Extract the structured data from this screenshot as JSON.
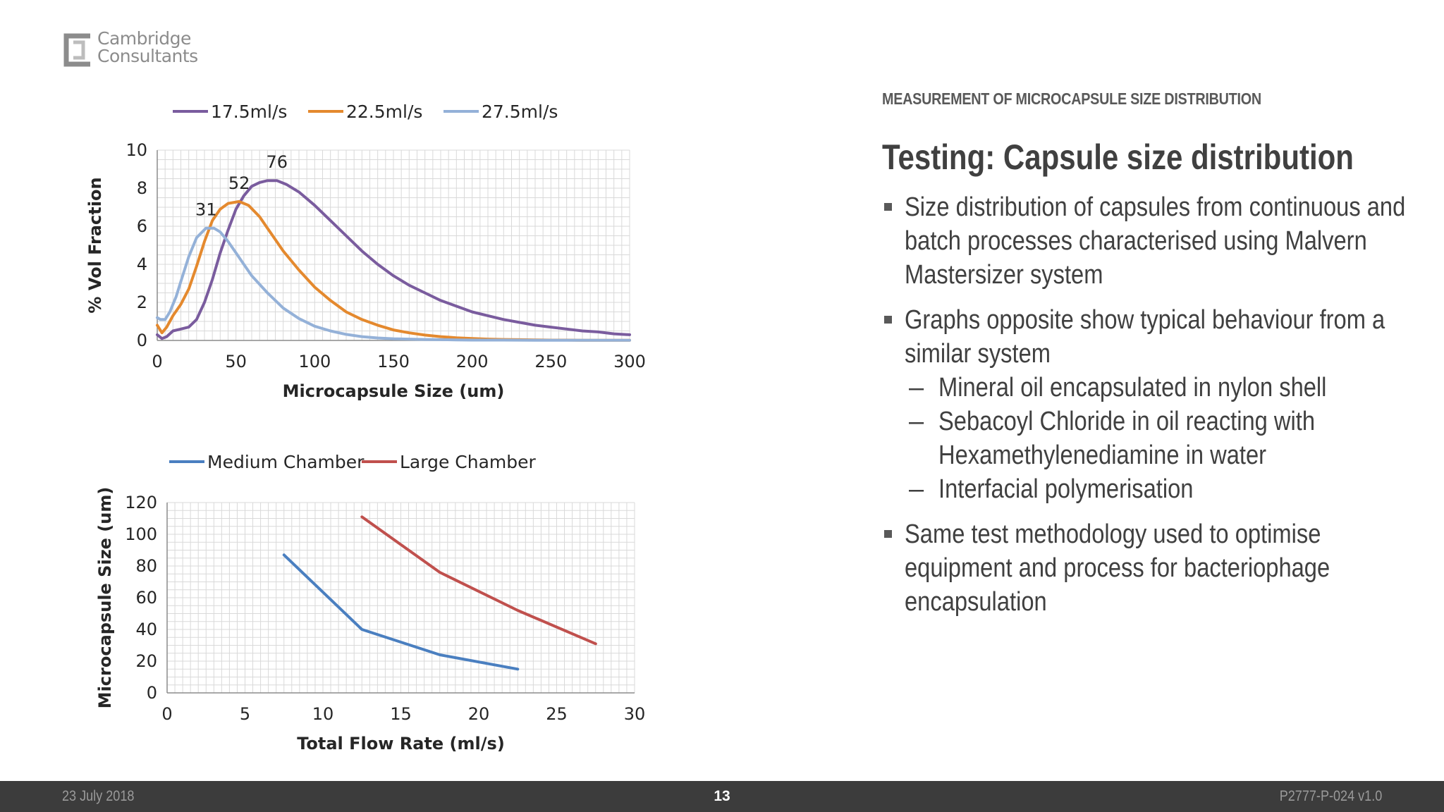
{
  "logo": {
    "line1": "Cambridge",
    "line2": "Consultants"
  },
  "section_label": "MEASUREMENT OF MICROCAPSULE SIZE DISTRIBUTION",
  "title": "Testing: Capsule size distribution",
  "bullets": [
    {
      "text": "Size distribution of capsules from continuous and batch processes characterised using Malvern Mastersizer system",
      "subs": []
    },
    {
      "text": "Graphs opposite show typical behaviour from a similar system",
      "subs": [
        "Mineral oil encapsulated in nylon shell",
        "Sebacoyl Chloride in oil reacting with Hexamethylenediamine in water",
        "Interfacial polymerisation"
      ]
    },
    {
      "text": "Same test methodology used to optimise equipment and process for bacteriophage encapsulation",
      "subs": []
    }
  ],
  "footer": {
    "date": "23 July 2018",
    "page": "13",
    "doc_id": "P2777-P-024 v1.0"
  },
  "colors": {
    "purple": "#7a5c9e",
    "orange": "#e4892e",
    "light_blue": "#94b1d8",
    "blue": "#4a7fc0",
    "red": "#c0504d"
  },
  "chart_data": [
    {
      "type": "line",
      "xlabel": "Microcapsule Size (um)",
      "ylabel": "% Vol Fraction",
      "xlim": [
        0,
        300
      ],
      "ylim": [
        0,
        10
      ],
      "xticks": [
        "0",
        "50",
        "100",
        "150",
        "200",
        "250",
        "300"
      ],
      "yticks": [
        "0",
        "2",
        "4",
        "6",
        "8",
        "10"
      ],
      "grid": true,
      "legend": "top",
      "series": [
        {
          "name": "17.5ml/s",
          "color": "#7a5c9e",
          "x": [
            0,
            3,
            6,
            10,
            15,
            20,
            25,
            30,
            35,
            40,
            45,
            50,
            55,
            60,
            65,
            70,
            76,
            82,
            90,
            100,
            110,
            120,
            130,
            140,
            150,
            160,
            170,
            180,
            190,
            200,
            210,
            220,
            230,
            240,
            250,
            260,
            270,
            280,
            290,
            300
          ],
          "y": [
            0.3,
            0.1,
            0.2,
            0.5,
            0.6,
            0.7,
            1.1,
            2.0,
            3.2,
            4.6,
            5.8,
            6.9,
            7.6,
            8.1,
            8.3,
            8.4,
            8.4,
            8.2,
            7.8,
            7.1,
            6.3,
            5.5,
            4.7,
            4.0,
            3.4,
            2.9,
            2.5,
            2.1,
            1.8,
            1.5,
            1.3,
            1.1,
            0.95,
            0.8,
            0.7,
            0.6,
            0.5,
            0.45,
            0.35,
            0.3
          ]
        },
        {
          "name": "22.5ml/s",
          "color": "#e4892e",
          "x": [
            0,
            3,
            6,
            10,
            15,
            20,
            25,
            30,
            35,
            40,
            45,
            52,
            58,
            65,
            70,
            75,
            80,
            90,
            100,
            110,
            120,
            130,
            140,
            150,
            160,
            170,
            180,
            190,
            200,
            210,
            220,
            230,
            240,
            250,
            260,
            270,
            280,
            290,
            300
          ],
          "y": [
            0.8,
            0.4,
            0.7,
            1.3,
            1.9,
            2.7,
            3.9,
            5.2,
            6.3,
            6.9,
            7.2,
            7.3,
            7.1,
            6.5,
            5.9,
            5.3,
            4.7,
            3.7,
            2.8,
            2.1,
            1.5,
            1.1,
            0.8,
            0.55,
            0.4,
            0.28,
            0.2,
            0.14,
            0.1,
            0.07,
            0.05,
            0.04,
            0.03,
            0.02,
            0.02,
            0.01,
            0.01,
            0.01,
            0.01
          ]
        },
        {
          "name": "27.5ml/s",
          "color": "#94b1d8",
          "x": [
            0,
            2,
            5,
            8,
            12,
            15,
            20,
            25,
            31,
            36,
            40,
            45,
            50,
            55,
            60,
            70,
            80,
            90,
            100,
            110,
            120,
            130,
            140,
            150,
            160,
            170,
            180,
            190,
            200,
            220,
            240,
            260,
            280,
            300
          ],
          "y": [
            1.2,
            1.1,
            1.1,
            1.5,
            2.3,
            3.1,
            4.4,
            5.4,
            5.9,
            5.9,
            5.7,
            5.2,
            4.6,
            4.0,
            3.4,
            2.5,
            1.7,
            1.15,
            0.75,
            0.5,
            0.32,
            0.2,
            0.13,
            0.09,
            0.07,
            0.05,
            0.04,
            0.03,
            0.02,
            0.02,
            0.01,
            0.01,
            0.01,
            0.01
          ]
        }
      ],
      "annotations": [
        {
          "text": "31",
          "x": 31,
          "y": 5.9
        },
        {
          "text": "52",
          "x": 52,
          "y": 7.3
        },
        {
          "text": "76",
          "x": 76,
          "y": 8.4
        }
      ]
    },
    {
      "type": "line",
      "xlabel": "Total Flow Rate (ml/s)",
      "ylabel": "Microcapsule Size (um)",
      "xlim": [
        0,
        30
      ],
      "ylim": [
        0,
        120
      ],
      "xticks": [
        "0",
        "5",
        "10",
        "15",
        "20",
        "25",
        "30"
      ],
      "yticks": [
        "0",
        "20",
        "40",
        "60",
        "80",
        "100",
        "120"
      ],
      "grid": true,
      "legend": "top",
      "series": [
        {
          "name": "Medium Chamber",
          "color": "#4a7fc0",
          "x": [
            7.5,
            12.5,
            17.5,
            22.5
          ],
          "y": [
            87,
            40,
            24,
            15
          ]
        },
        {
          "name": "Large Chamber",
          "color": "#c0504d",
          "x": [
            12.5,
            17.5,
            22.5,
            27.5
          ],
          "y": [
            111,
            76,
            52,
            31
          ]
        }
      ],
      "annotations": []
    }
  ]
}
